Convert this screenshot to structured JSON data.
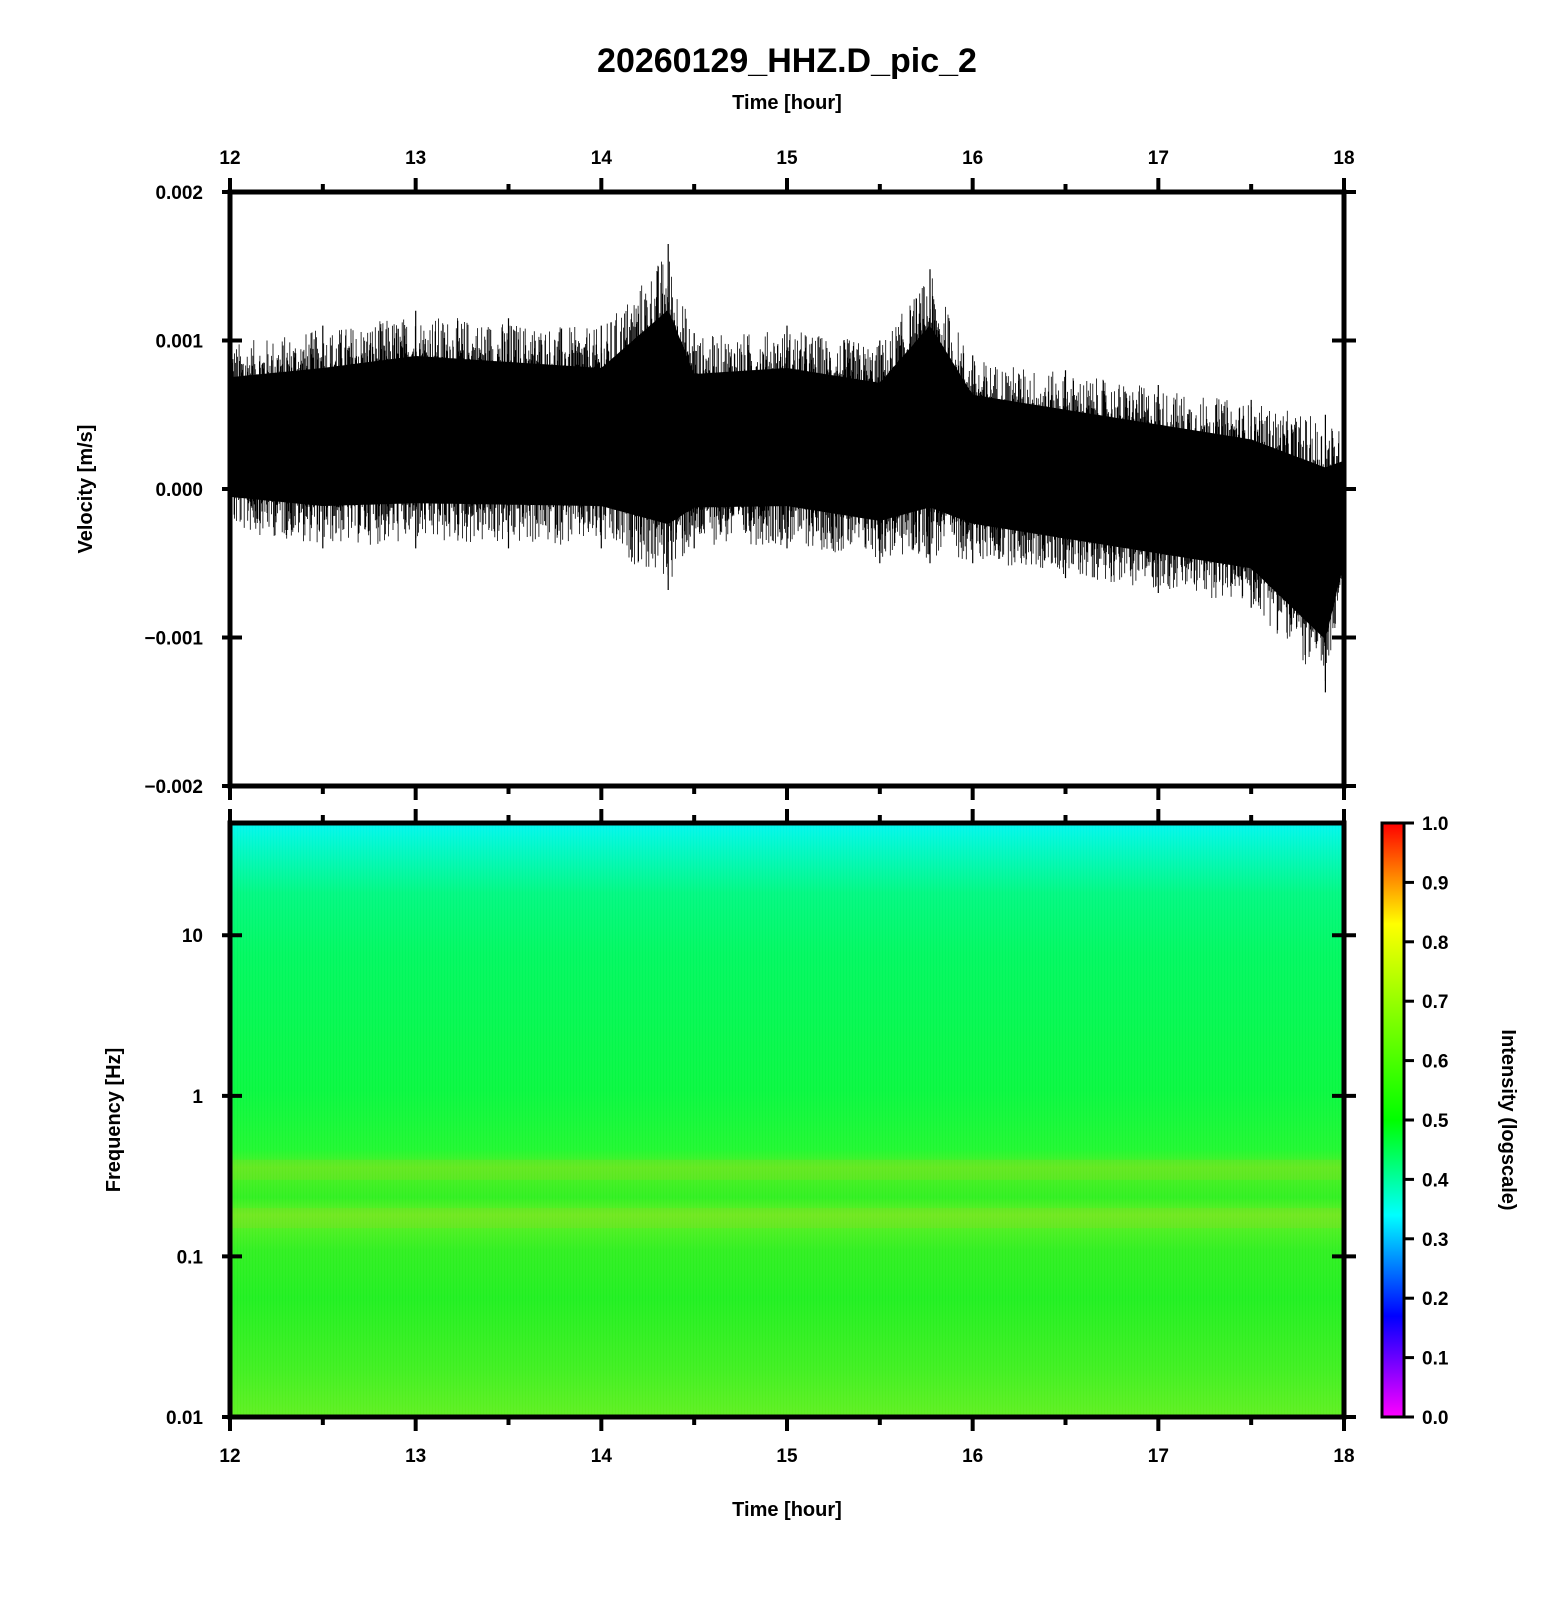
{
  "title": "20260129_HHZ.D_pic_2",
  "top_xlabel": "Time [hour]",
  "bottom_xlabel": "Time [hour]",
  "x_ticks": [
    "12",
    "13",
    "14",
    "15",
    "16",
    "17",
    "18"
  ],
  "waveform_ylabel": "Velocity [m/s]",
  "waveform_yticks": [
    "0.002",
    "0.001",
    "0.000",
    "−0.001",
    "−0.002"
  ],
  "spectro_ylabel": "Frequency [Hz]",
  "spectro_yticks": [
    "10",
    "1",
    "0.1",
    "0.01"
  ],
  "colorbar_label": "Intensity (logscale)",
  "colorbar_ticks": [
    "1.0",
    "0.9",
    "0.8",
    "0.7",
    "0.6",
    "0.5",
    "0.4",
    "0.3",
    "0.2",
    "0.1",
    "0.0"
  ],
  "chart_data": [
    {
      "type": "line",
      "title": "20260129_HHZ.D_pic_2",
      "xlabel": "Time [hour]",
      "ylabel": "Velocity [m/s]",
      "xlim": [
        12,
        18
      ],
      "ylim": [
        -0.002,
        0.002
      ],
      "grid": false,
      "series": [
        {
          "x": [
            12.0,
            12.5,
            13.0,
            13.5,
            14.0,
            14.36,
            14.5,
            15.0,
            15.5,
            15.77,
            16.0,
            16.5,
            17.0,
            17.5,
            17.9,
            18.0
          ],
          "upper": [
            0.001,
            0.0011,
            0.0012,
            0.00115,
            0.0011,
            0.00165,
            0.00105,
            0.0011,
            0.001,
            0.00148,
            0.0009,
            0.0008,
            0.0007,
            0.0006,
            0.0005,
            0.0004
          ],
          "lower": [
            -0.0003,
            -0.0004,
            -0.0004,
            -0.0004,
            -0.0004,
            -0.00068,
            -0.0004,
            -0.0004,
            -0.0005,
            -0.0005,
            -0.0005,
            -0.0006,
            -0.0007,
            -0.0008,
            -0.00137,
            -0.0007
          ]
        }
      ]
    },
    {
      "type": "heatmap",
      "xlabel": "Time [hour]",
      "ylabel": "Frequency [Hz]",
      "xlim": [
        12,
        18
      ],
      "ylim": [
        0.01,
        50
      ],
      "yscale": "log",
      "colorbar_label": "Intensity (logscale)",
      "colorbar_range": [
        0.0,
        1.0
      ],
      "colormap": "rainbow",
      "frequency_profile": [
        {
          "freq": 50,
          "intensity": 0.45
        },
        {
          "freq": 30,
          "intensity": 0.5
        },
        {
          "freq": 10,
          "intensity": 0.58
        },
        {
          "freq": 1,
          "intensity": 0.6
        },
        {
          "freq": 0.4,
          "intensity": 0.66
        },
        {
          "freq": 0.2,
          "intensity": 0.65
        },
        {
          "freq": 0.1,
          "intensity": 0.61
        },
        {
          "freq": 0.01,
          "intensity": 0.66
        }
      ]
    }
  ]
}
